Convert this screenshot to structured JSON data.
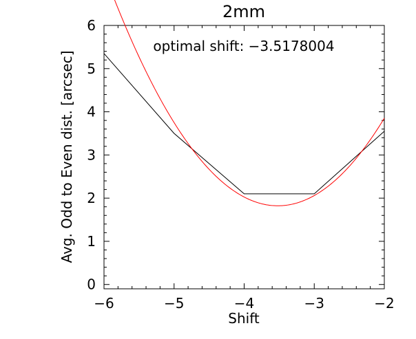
{
  "chart_data": {
    "type": "line",
    "title": "2mm",
    "xlabel": "Shift",
    "ylabel": "Avg. Odd to Even dist. [arcsec]",
    "annotation": "optimal shift: −3.5178004",
    "xlim": [
      -6,
      -2
    ],
    "ylim": [
      -0.1,
      6
    ],
    "xticks": [
      -6,
      -5,
      -4,
      -3,
      -2
    ],
    "xtick_labels": [
      "−6",
      "−5",
      "−4",
      "−3",
      "−2"
    ],
    "yticks": [
      0,
      1,
      2,
      3,
      4,
      5,
      6
    ],
    "ytick_labels": [
      "0",
      "1",
      "2",
      "3",
      "4",
      "5",
      "6"
    ],
    "grid": false,
    "series": [
      {
        "color": "#000000",
        "x": [
          -6,
          -5,
          -4,
          -3,
          -2
        ],
        "y": [
          5.35,
          3.5,
          2.1,
          2.1,
          3.55
        ]
      },
      {
        "color": "#ff0000",
        "fit": "quadratic",
        "coefficients": [
          0.879,
          6.187,
          12.71
        ]
      }
    ]
  }
}
